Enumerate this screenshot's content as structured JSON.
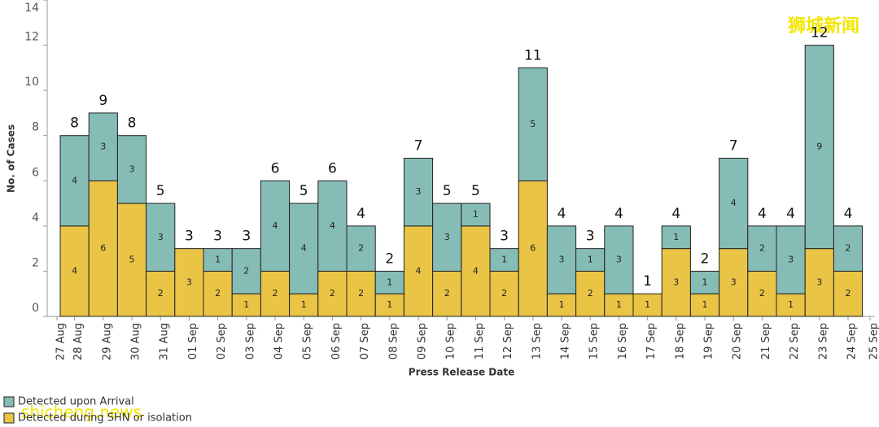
{
  "chart_data": {
    "type": "stacked_bar",
    "x_label": "Press Release Date",
    "y_label": "No. of Cases",
    "categories": [
      "27 Aug",
      "28 Aug",
      "29 Aug",
      "30 Aug",
      "31 Aug",
      "01 Sep",
      "02 Sep",
      "03 Sep",
      "04 Sep",
      "05 Sep",
      "06 Sep",
      "07 Sep",
      "08 Sep",
      "09 Sep",
      "10 Sep",
      "11 Sep",
      "12 Sep",
      "13 Sep",
      "14 Sep",
      "15 Sep",
      "16 Sep",
      "17 Sep",
      "18 Sep",
      "19 Sep",
      "20 Sep",
      "21 Sep",
      "22 Sep",
      "23 Sep",
      "24 Sep",
      "25 Sep"
    ],
    "series": [
      {
        "name": "Detected during SHN or isolation",
        "color": "#e9c445",
        "values": [
          null,
          4,
          6,
          5,
          2,
          3,
          2,
          1,
          2,
          1,
          2,
          2,
          1,
          4,
          2,
          4,
          2,
          6,
          1,
          2,
          1,
          1,
          3,
          1,
          3,
          2,
          1,
          3,
          2,
          null
        ]
      },
      {
        "name": "Detected upon Arrival",
        "color": "#86bcb6",
        "values": [
          null,
          4,
          3,
          3,
          3,
          0,
          1,
          2,
          4,
          4,
          4,
          2,
          1,
          3,
          3,
          1,
          1,
          5,
          3,
          1,
          3,
          0,
          1,
          1,
          4,
          2,
          3,
          9,
          2,
          null
        ]
      }
    ],
    "totals": [
      null,
      8,
      9,
      8,
      5,
      3,
      3,
      3,
      6,
      5,
      6,
      4,
      2,
      7,
      5,
      5,
      3,
      11,
      4,
      3,
      4,
      1,
      4,
      2,
      7,
      4,
      4,
      12,
      4,
      null
    ],
    "ylim": [
      0,
      14
    ],
    "yticks": [
      0,
      2,
      4,
      6,
      8,
      10,
      12,
      14
    ],
    "watermarks": [
      "狮城新闻",
      "shicheng.news"
    ]
  }
}
